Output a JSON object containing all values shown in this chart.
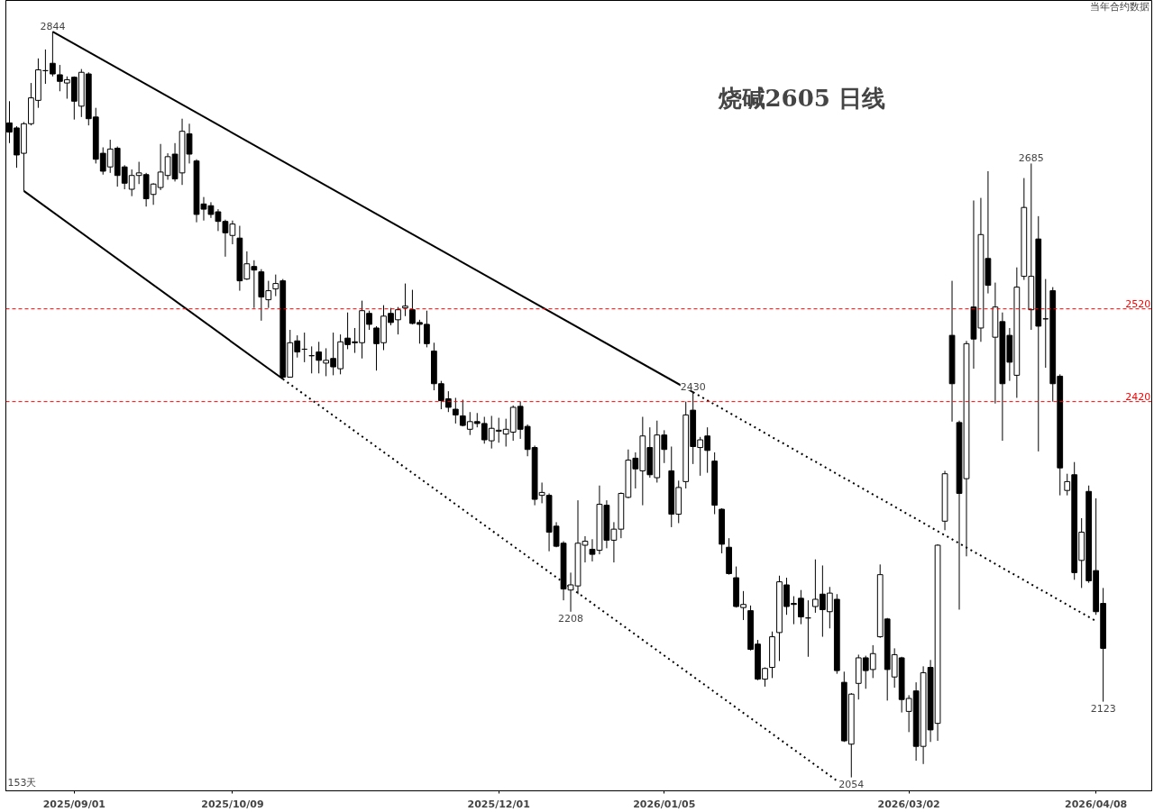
{
  "chart_data": {
    "type": "candlestick",
    "title": "烧碱2605 日线",
    "categories": [
      null,
      null,
      null,
      null,
      null,
      null,
      null,
      null,
      null,
      "2025/09/01",
      null,
      null,
      null,
      null,
      null,
      null,
      null,
      null,
      null,
      null,
      null,
      null,
      null,
      null,
      null,
      null,
      null,
      null,
      null,
      null,
      null,
      "2025/10/09",
      null,
      null,
      null,
      null,
      null,
      null,
      null,
      null,
      null,
      null,
      null,
      null,
      null,
      null,
      null,
      null,
      null,
      null,
      null,
      null,
      null,
      null,
      null,
      null,
      null,
      null,
      null,
      null,
      null,
      null,
      null,
      null,
      null,
      null,
      null,
      null,
      "2025/12/01",
      null,
      null,
      null,
      null,
      null,
      null,
      null,
      null,
      null,
      null,
      null,
      null,
      null,
      null,
      null,
      null,
      null,
      null,
      null,
      null,
      null,
      null,
      "2026/01/05",
      null,
      null,
      null,
      null,
      null,
      null,
      null,
      null,
      null,
      null,
      null,
      null,
      null,
      null,
      null,
      null,
      null,
      null,
      null,
      null,
      null,
      null,
      null,
      null,
      null,
      null,
      null,
      null,
      null,
      null,
      null,
      null,
      null,
      "2026/03/02",
      null,
      null,
      null,
      null,
      null,
      null,
      null,
      null,
      null,
      null,
      null,
      null,
      null,
      null,
      null,
      null,
      null,
      null,
      null,
      null,
      null,
      null,
      null,
      null,
      null,
      "2026/04/08",
      null
    ],
    "ohlc": [
      [
        2733,
        2759,
        2709,
        2722
      ],
      [
        2727,
        2729,
        2680,
        2695
      ],
      [
        2697,
        2734,
        2653,
        2732
      ],
      [
        2732,
        2781,
        2730,
        2763
      ],
      [
        2760,
        2811,
        2751,
        2797
      ],
      [
        2796,
        2822,
        2780,
        2796
      ],
      [
        2805,
        2844,
        2789,
        2792
      ],
      [
        2791,
        2803,
        2771,
        2783
      ],
      [
        2781,
        2789,
        2762,
        2785
      ],
      [
        2788,
        2789,
        2737,
        2759
      ],
      [
        2753,
        2798,
        2740,
        2794
      ],
      [
        2792,
        2794,
        2730,
        2738
      ],
      [
        2740,
        2751,
        2685,
        2690
      ],
      [
        2697,
        2704,
        2672,
        2676
      ],
      [
        2681,
        2713,
        2674,
        2702
      ],
      [
        2703,
        2705,
        2658,
        2671
      ],
      [
        2681,
        2683,
        2655,
        2662
      ],
      [
        2655,
        2678,
        2647,
        2671
      ],
      [
        2671,
        2687,
        2661,
        2674
      ],
      [
        2672,
        2674,
        2635,
        2644
      ],
      [
        2649,
        2662,
        2637,
        2661
      ],
      [
        2657,
        2708,
        2654,
        2675
      ],
      [
        2671,
        2697,
        2666,
        2693
      ],
      [
        2696,
        2709,
        2664,
        2667
      ],
      [
        2674,
        2738,
        2660,
        2723
      ],
      [
        2720,
        2732,
        2685,
        2696
      ],
      [
        2688,
        2690,
        2617,
        2626
      ],
      [
        2638,
        2646,
        2619,
        2632
      ],
      [
        2636,
        2640,
        2622,
        2626
      ],
      [
        2629,
        2632,
        2607,
        2618
      ],
      [
        2618,
        2620,
        2578,
        2605
      ],
      [
        2602,
        2619,
        2592,
        2615
      ],
      [
        2599,
        2613,
        2540,
        2551
      ],
      [
        2553,
        2584,
        2552,
        2570
      ],
      [
        2567,
        2574,
        2521,
        2563
      ],
      [
        2561,
        2564,
        2507,
        2533
      ],
      [
        2530,
        2551,
        2521,
        2540
      ],
      [
        2542,
        2558,
        2534,
        2548
      ],
      [
        2551,
        2553,
        2444,
        2446
      ],
      [
        2446,
        2497,
        2446,
        2483
      ],
      [
        2485,
        2491,
        2467,
        2473
      ],
      [
        2476,
        2494,
        2462,
        2476
      ],
      [
        2469,
        2479,
        2450,
        2469
      ],
      [
        2473,
        2484,
        2450,
        2464
      ],
      [
        2461,
        2477,
        2447,
        2464
      ],
      [
        2466,
        2494,
        2448,
        2457
      ],
      [
        2455,
        2492,
        2449,
        2484
      ],
      [
        2488,
        2516,
        2476,
        2481
      ],
      [
        2484,
        2499,
        2472,
        2483
      ],
      [
        2483,
        2529,
        2466,
        2518
      ],
      [
        2515,
        2518,
        2497,
        2503
      ],
      [
        2499,
        2501,
        2453,
        2482
      ],
      [
        2483,
        2524,
        2475,
        2512
      ],
      [
        2515,
        2521,
        2502,
        2505
      ],
      [
        2508,
        2522,
        2492,
        2519
      ],
      [
        2521,
        2548,
        2512,
        2523
      ],
      [
        2519,
        2541,
        2503,
        2504
      ],
      [
        2505,
        2508,
        2482,
        2503
      ],
      [
        2503,
        2518,
        2478,
        2482
      ],
      [
        2474,
        2483,
        2432,
        2439
      ],
      [
        2439,
        2442,
        2412,
        2421
      ],
      [
        2423,
        2431,
        2409,
        2414
      ],
      [
        2412,
        2424,
        2397,
        2406
      ],
      [
        2405,
        2422,
        2394,
        2395
      ],
      [
        2391,
        2409,
        2385,
        2399
      ],
      [
        2399,
        2408,
        2393,
        2397
      ],
      [
        2397,
        2404,
        2376,
        2380
      ],
      [
        2379,
        2405,
        2371,
        2392
      ],
      [
        2389,
        2403,
        2377,
        2390
      ],
      [
        2386,
        2402,
        2373,
        2391
      ],
      [
        2388,
        2416,
        2379,
        2414
      ],
      [
        2415,
        2420,
        2381,
        2391
      ],
      [
        2394,
        2396,
        2363,
        2370
      ],
      [
        2372,
        2374,
        2313,
        2319
      ],
      [
        2323,
        2336,
        2315,
        2326
      ],
      [
        2323,
        2325,
        2267,
        2286
      ],
      [
        2292,
        2296,
        2271,
        2272
      ],
      [
        2275,
        2277,
        2219,
        2230
      ],
      [
        2229,
        2246,
        2208,
        2234
      ],
      [
        2233,
        2318,
        2225,
        2275
      ],
      [
        2273,
        2282,
        2256,
        2277
      ],
      [
        2269,
        2279,
        2257,
        2264
      ],
      [
        2268,
        2333,
        2264,
        2314
      ],
      [
        2313,
        2318,
        2270,
        2278
      ],
      [
        2278,
        2296,
        2256,
        2289
      ],
      [
        2289,
        2326,
        2280,
        2325
      ],
      [
        2321,
        2370,
        2320,
        2359
      ],
      [
        2361,
        2367,
        2330,
        2350
      ],
      [
        2348,
        2404,
        2313,
        2384
      ],
      [
        2372,
        2393,
        2341,
        2344
      ],
      [
        2341,
        2400,
        2336,
        2385
      ],
      [
        2385,
        2390,
        2356,
        2370
      ],
      [
        2348,
        2373,
        2291,
        2304
      ],
      [
        2304,
        2338,
        2295,
        2331
      ],
      [
        2337,
        2420,
        2330,
        2406
      ],
      [
        2411,
        2430,
        2355,
        2373
      ],
      [
        2372,
        2383,
        2343,
        2380
      ],
      [
        2384,
        2393,
        2346,
        2369
      ],
      [
        2358,
        2367,
        2304,
        2313
      ],
      [
        2309,
        2310,
        2265,
        2274
      ],
      [
        2271,
        2280,
        2244,
        2245
      ],
      [
        2241,
        2252,
        2212,
        2213
      ],
      [
        2212,
        2228,
        2200,
        2215
      ],
      [
        2209,
        2214,
        2171,
        2172
      ],
      [
        2177,
        2181,
        2143,
        2144
      ],
      [
        2144,
        2155,
        2137,
        2154
      ],
      [
        2155,
        2189,
        2145,
        2184
      ],
      [
        2188,
        2243,
        2161,
        2237
      ],
      [
        2234,
        2241,
        2205,
        2213
      ],
      [
        2216,
        2223,
        2196,
        2215
      ],
      [
        2221,
        2229,
        2196,
        2203
      ],
      [
        2202,
        2219,
        2165,
        2202
      ],
      [
        2213,
        2259,
        2207,
        2220
      ],
      [
        2225,
        2253,
        2184,
        2210
      ],
      [
        2208,
        2232,
        2192,
        2226
      ],
      [
        2220,
        2225,
        2149,
        2152
      ],
      [
        2141,
        2151,
        2086,
        2087
      ],
      [
        2084,
        2131,
        2054,
        2130
      ],
      [
        2140,
        2167,
        2125,
        2164
      ],
      [
        2164,
        2166,
        2135,
        2152
      ],
      [
        2153,
        2176,
        2145,
        2168
      ],
      [
        2184,
        2254,
        2183,
        2244
      ],
      [
        2201,
        2202,
        2124,
        2153
      ],
      [
        2146,
        2173,
        2136,
        2167
      ],
      [
        2164,
        2165,
        2113,
        2125
      ],
      [
        2114,
        2129,
        2095,
        2126
      ],
      [
        2133,
        2141,
        2069,
        2082
      ],
      [
        2082,
        2156,
        2066,
        2150
      ],
      [
        2155,
        2162,
        2086,
        2097
      ],
      [
        2103,
        2274,
        2087,
        2273
      ],
      [
        2297,
        2348,
        2288,
        2345
      ],
      [
        2491,
        2551,
        2399,
        2439
      ],
      [
        2398,
        2400,
        2210,
        2325
      ],
      [
        2340,
        2485,
        2262,
        2482
      ],
      [
        2522,
        2642,
        2455,
        2487
      ],
      [
        2499,
        2645,
        2484,
        2603
      ],
      [
        2576,
        2676,
        2537,
        2546
      ],
      [
        2489,
        2549,
        2418,
        2522
      ],
      [
        2506,
        2516,
        2379,
        2439
      ],
      [
        2491,
        2499,
        2442,
        2462
      ],
      [
        2448,
        2566,
        2424,
        2544
      ],
      [
        2556,
        2668,
        2552,
        2634
      ],
      [
        2519,
        2685,
        2497,
        2556
      ],
      [
        2598,
        2624,
        2368,
        2501
      ],
      [
        2509,
        2553,
        2456,
        2509
      ],
      [
        2540,
        2544,
        2420,
        2439
      ],
      [
        2447,
        2449,
        2323,
        2351
      ],
      [
        2328,
        2345,
        2323,
        2337
      ],
      [
        2344,
        2357,
        2239,
        2246
      ],
      [
        2258,
        2300,
        2231,
        2286
      ],
      [
        2327,
        2333,
        2236,
        2238
      ],
      [
        2248,
        2320,
        2205,
        2208
      ],
      [
        2216,
        2231,
        2123,
        2173
      ]
    ],
    "series": [
      {
        "type": "line",
        "color": "#000000",
        "line_style": "solid",
        "values": [
          null,
          null,
          null,
          null,
          null,
          null,
          2844,
          null,
          null,
          null,
          null,
          null,
          null,
          null,
          null,
          null,
          null,
          null,
          null,
          null,
          null,
          null,
          null,
          null,
          null,
          null,
          null,
          null,
          null,
          null,
          null,
          null,
          null,
          null,
          null,
          null,
          null,
          null,
          null,
          null,
          null,
          null,
          null,
          null,
          null,
          null,
          null,
          null,
          null,
          null,
          null,
          null,
          null,
          null,
          null,
          null,
          null,
          null,
          null,
          null,
          null,
          null,
          null,
          null,
          null,
          null,
          null,
          null,
          null,
          null,
          null,
          null,
          null,
          null,
          null,
          null,
          null,
          null,
          null,
          null,
          null,
          null,
          null,
          null,
          null,
          null,
          null,
          null,
          null,
          null,
          null,
          null,
          null,
          null,
          null,
          2430,
          null,
          null,
          null,
          null,
          null,
          null,
          null,
          null,
          null,
          null,
          null,
          null,
          null,
          null,
          null,
          null,
          null,
          null,
          null,
          null,
          null,
          null,
          null,
          null,
          null,
          null,
          null,
          null,
          null,
          null,
          null,
          null,
          null,
          null,
          null,
          null,
          null,
          null,
          null,
          null,
          null,
          null,
          null,
          null,
          null,
          null,
          null,
          null,
          null,
          null,
          null,
          null,
          null,
          null,
          null,
          null,
          null
        ]
      },
      {
        "type": "line",
        "color": "#000000",
        "line_style": "dotted",
        "values": [
          null,
          null,
          null,
          null,
          null,
          null,
          null,
          null,
          null,
          null,
          null,
          null,
          null,
          null,
          null,
          null,
          null,
          null,
          null,
          null,
          null,
          null,
          null,
          null,
          null,
          null,
          null,
          null,
          null,
          null,
          null,
          null,
          null,
          null,
          null,
          null,
          null,
          null,
          null,
          null,
          null,
          null,
          null,
          null,
          null,
          null,
          null,
          null,
          null,
          null,
          null,
          null,
          null,
          null,
          null,
          null,
          null,
          null,
          null,
          null,
          null,
          null,
          null,
          null,
          null,
          null,
          null,
          null,
          null,
          null,
          null,
          null,
          null,
          null,
          null,
          null,
          null,
          null,
          null,
          null,
          null,
          null,
          null,
          null,
          null,
          null,
          null,
          null,
          null,
          null,
          null,
          null,
          null,
          null,
          null,
          2430,
          null,
          null,
          null,
          null,
          null,
          null,
          null,
          null,
          null,
          null,
          null,
          null,
          null,
          null,
          null,
          null,
          null,
          null,
          null,
          null,
          null,
          null,
          null,
          null,
          null,
          null,
          null,
          null,
          null,
          null,
          null,
          null,
          null,
          null,
          null,
          null,
          null,
          null,
          null,
          null,
          null,
          null,
          null,
          null,
          null,
          null,
          null,
          null,
          null,
          null,
          null,
          null,
          null,
          null,
          null,
          2199,
          null
        ]
      },
      {
        "type": "line",
        "color": "#000000",
        "line_style": "solid",
        "values": [
          null,
          null,
          2653,
          null,
          null,
          null,
          null,
          null,
          null,
          null,
          null,
          null,
          null,
          null,
          null,
          null,
          null,
          null,
          null,
          null,
          null,
          null,
          null,
          null,
          null,
          null,
          null,
          null,
          null,
          null,
          null,
          null,
          null,
          null,
          null,
          null,
          null,
          null,
          2444,
          null,
          null,
          null,
          null,
          null,
          null,
          null,
          null,
          null,
          null,
          null,
          null,
          null,
          null,
          null,
          null,
          null,
          null,
          null,
          null,
          null,
          null,
          null,
          null,
          null,
          null,
          null,
          null,
          null,
          null,
          null,
          null,
          null,
          null,
          null,
          null,
          null,
          null,
          null,
          null,
          null,
          null,
          null,
          null,
          null,
          null,
          null,
          null,
          null,
          null,
          null,
          null,
          null,
          null,
          null,
          null,
          null,
          null,
          null,
          null,
          null,
          null,
          null,
          null,
          null,
          null,
          null,
          null,
          null,
          null,
          null,
          null,
          null,
          null,
          null,
          null,
          null,
          null,
          null,
          null,
          null,
          null,
          null,
          null,
          null,
          null,
          null,
          null,
          null,
          null,
          null,
          null,
          null,
          null,
          null,
          null,
          null,
          null,
          null,
          null,
          null,
          null,
          null,
          null,
          null,
          null,
          null,
          null,
          null,
          null,
          null,
          null,
          null,
          null
        ]
      },
      {
        "type": "line",
        "color": "#000000",
        "line_style": "dotted",
        "values": [
          null,
          null,
          null,
          null,
          null,
          null,
          null,
          null,
          null,
          null,
          null,
          null,
          null,
          null,
          null,
          null,
          null,
          null,
          null,
          null,
          null,
          null,
          null,
          null,
          null,
          null,
          null,
          null,
          null,
          null,
          null,
          null,
          null,
          null,
          null,
          null,
          null,
          null,
          2444,
          null,
          null,
          null,
          null,
          null,
          null,
          null,
          null,
          null,
          null,
          null,
          null,
          null,
          null,
          null,
          null,
          null,
          null,
          null,
          null,
          null,
          null,
          null,
          null,
          null,
          null,
          null,
          null,
          null,
          null,
          null,
          null,
          null,
          null,
          null,
          null,
          null,
          null,
          null,
          null,
          null,
          null,
          null,
          null,
          null,
          null,
          null,
          null,
          null,
          null,
          null,
          null,
          null,
          null,
          null,
          null,
          null,
          null,
          null,
          null,
          null,
          null,
          null,
          null,
          null,
          null,
          null,
          null,
          null,
          null,
          null,
          null,
          null,
          null,
          null,
          null,
          2051,
          null,
          null,
          null,
          null,
          null,
          null,
          null,
          null,
          null,
          null,
          null,
          null,
          null,
          null,
          null,
          null,
          null,
          null,
          null,
          null,
          null,
          null,
          null,
          null,
          null,
          null,
          null,
          null,
          null,
          null,
          null,
          null,
          null,
          null,
          null,
          null,
          null
        ]
      }
    ],
    "ref_lines": [
      {
        "axis": "y",
        "value": 2520,
        "label": "2520",
        "color": "#ff0000",
        "line_style": "dashed"
      },
      {
        "axis": "y",
        "value": 2420,
        "label": "2420",
        "color": "#ff0000",
        "line_style": "dashed"
      }
    ],
    "annotations": [
      {
        "text": "2844",
        "y": 2844
      },
      {
        "text": "2685",
        "y": 2685
      },
      {
        "text": "2430",
        "y": 2430
      },
      {
        "text": "2208",
        "y": 2208
      },
      {
        "text": "2054",
        "y": 2054
      },
      {
        "text": "2123",
        "y": 2123
      },
      "当年合约数据",
      "153天"
    ],
    "ylim": [
      2042,
      2883
    ],
    "log": true,
    "grid": false,
    "tick_labels": "x"
  }
}
